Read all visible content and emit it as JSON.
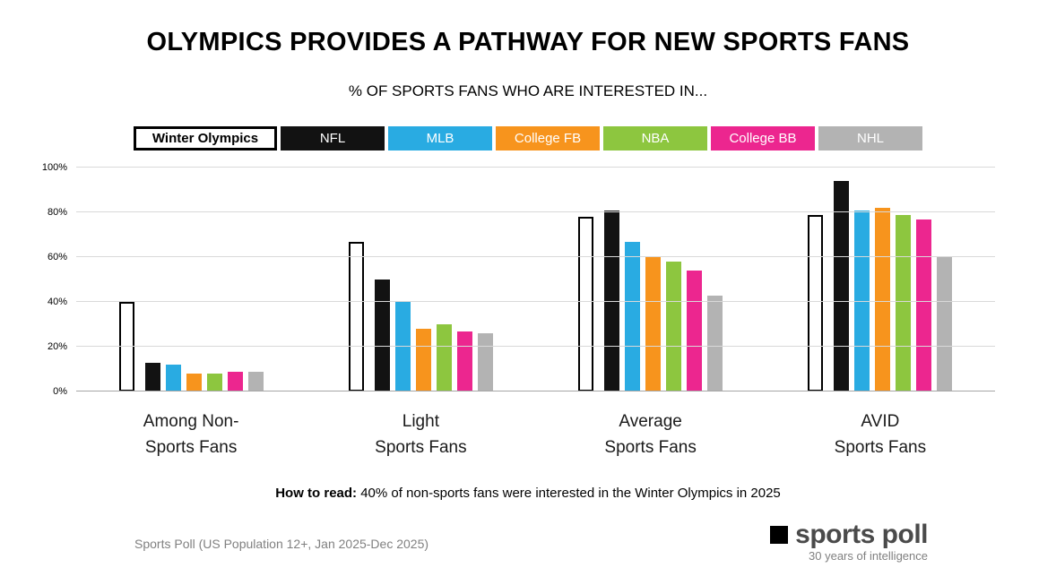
{
  "header": {
    "title": "OLYMPICS PROVIDES A PATHWAY FOR NEW SPORTS FANS",
    "subtitle": "% OF SPORTS FANS WHO ARE INTERESTED IN..."
  },
  "chart_data": {
    "type": "bar",
    "title": "OLYMPICS PROVIDES A PATHWAY FOR NEW SPORTS FANS",
    "subtitle": "% OF SPORTS FANS WHO ARE INTERESTED IN...",
    "ylim": [
      0,
      100
    ],
    "yticks": [
      0,
      20,
      40,
      60,
      80,
      100
    ],
    "ytick_labels": [
      "0%",
      "20%",
      "40%",
      "60%",
      "80%",
      "100%"
    ],
    "grid": true,
    "legend_position": "top",
    "categories": [
      [
        "Among Non-",
        "Sports Fans"
      ],
      [
        "Light",
        "Sports Fans"
      ],
      [
        "Average",
        "Sports Fans"
      ],
      [
        "AVID",
        "Sports Fans"
      ]
    ],
    "series": [
      {
        "name": "Winter Olympics",
        "color": "#ffffff",
        "outlined": true,
        "text_color": "#000000",
        "values": [
          40,
          67,
          78,
          79
        ]
      },
      {
        "name": "NFL",
        "color": "#121212",
        "outlined": false,
        "text_color": "#ffffff",
        "values": [
          13,
          50,
          81,
          94
        ]
      },
      {
        "name": "MLB",
        "color": "#29abe2",
        "outlined": false,
        "text_color": "#ffffff",
        "values": [
          12,
          40,
          67,
          81
        ]
      },
      {
        "name": "College FB",
        "color": "#f7941d",
        "outlined": false,
        "text_color": "#ffffff",
        "values": [
          8,
          28,
          60,
          82
        ]
      },
      {
        "name": "NBA",
        "color": "#8dc63f",
        "outlined": false,
        "text_color": "#ffffff",
        "values": [
          8,
          30,
          58,
          79
        ]
      },
      {
        "name": "College BB",
        "color": "#ec268f",
        "outlined": false,
        "text_color": "#ffffff",
        "values": [
          9,
          27,
          54,
          77
        ]
      },
      {
        "name": "NHL",
        "color": "#b3b3b3",
        "outlined": false,
        "text_color": "#ffffff",
        "values": [
          9,
          26,
          43,
          60
        ]
      }
    ]
  },
  "how_to_read": {
    "bold": "How to read:",
    "text": " 40% of non-sports fans were interested in the Winter Olympics in 2025"
  },
  "footer": {
    "source": "Sports Poll (US Population 12+, Jan 2025-Dec 2025)",
    "logo_text": "sports poll",
    "logo_tagline": "30 years of intelligence"
  }
}
